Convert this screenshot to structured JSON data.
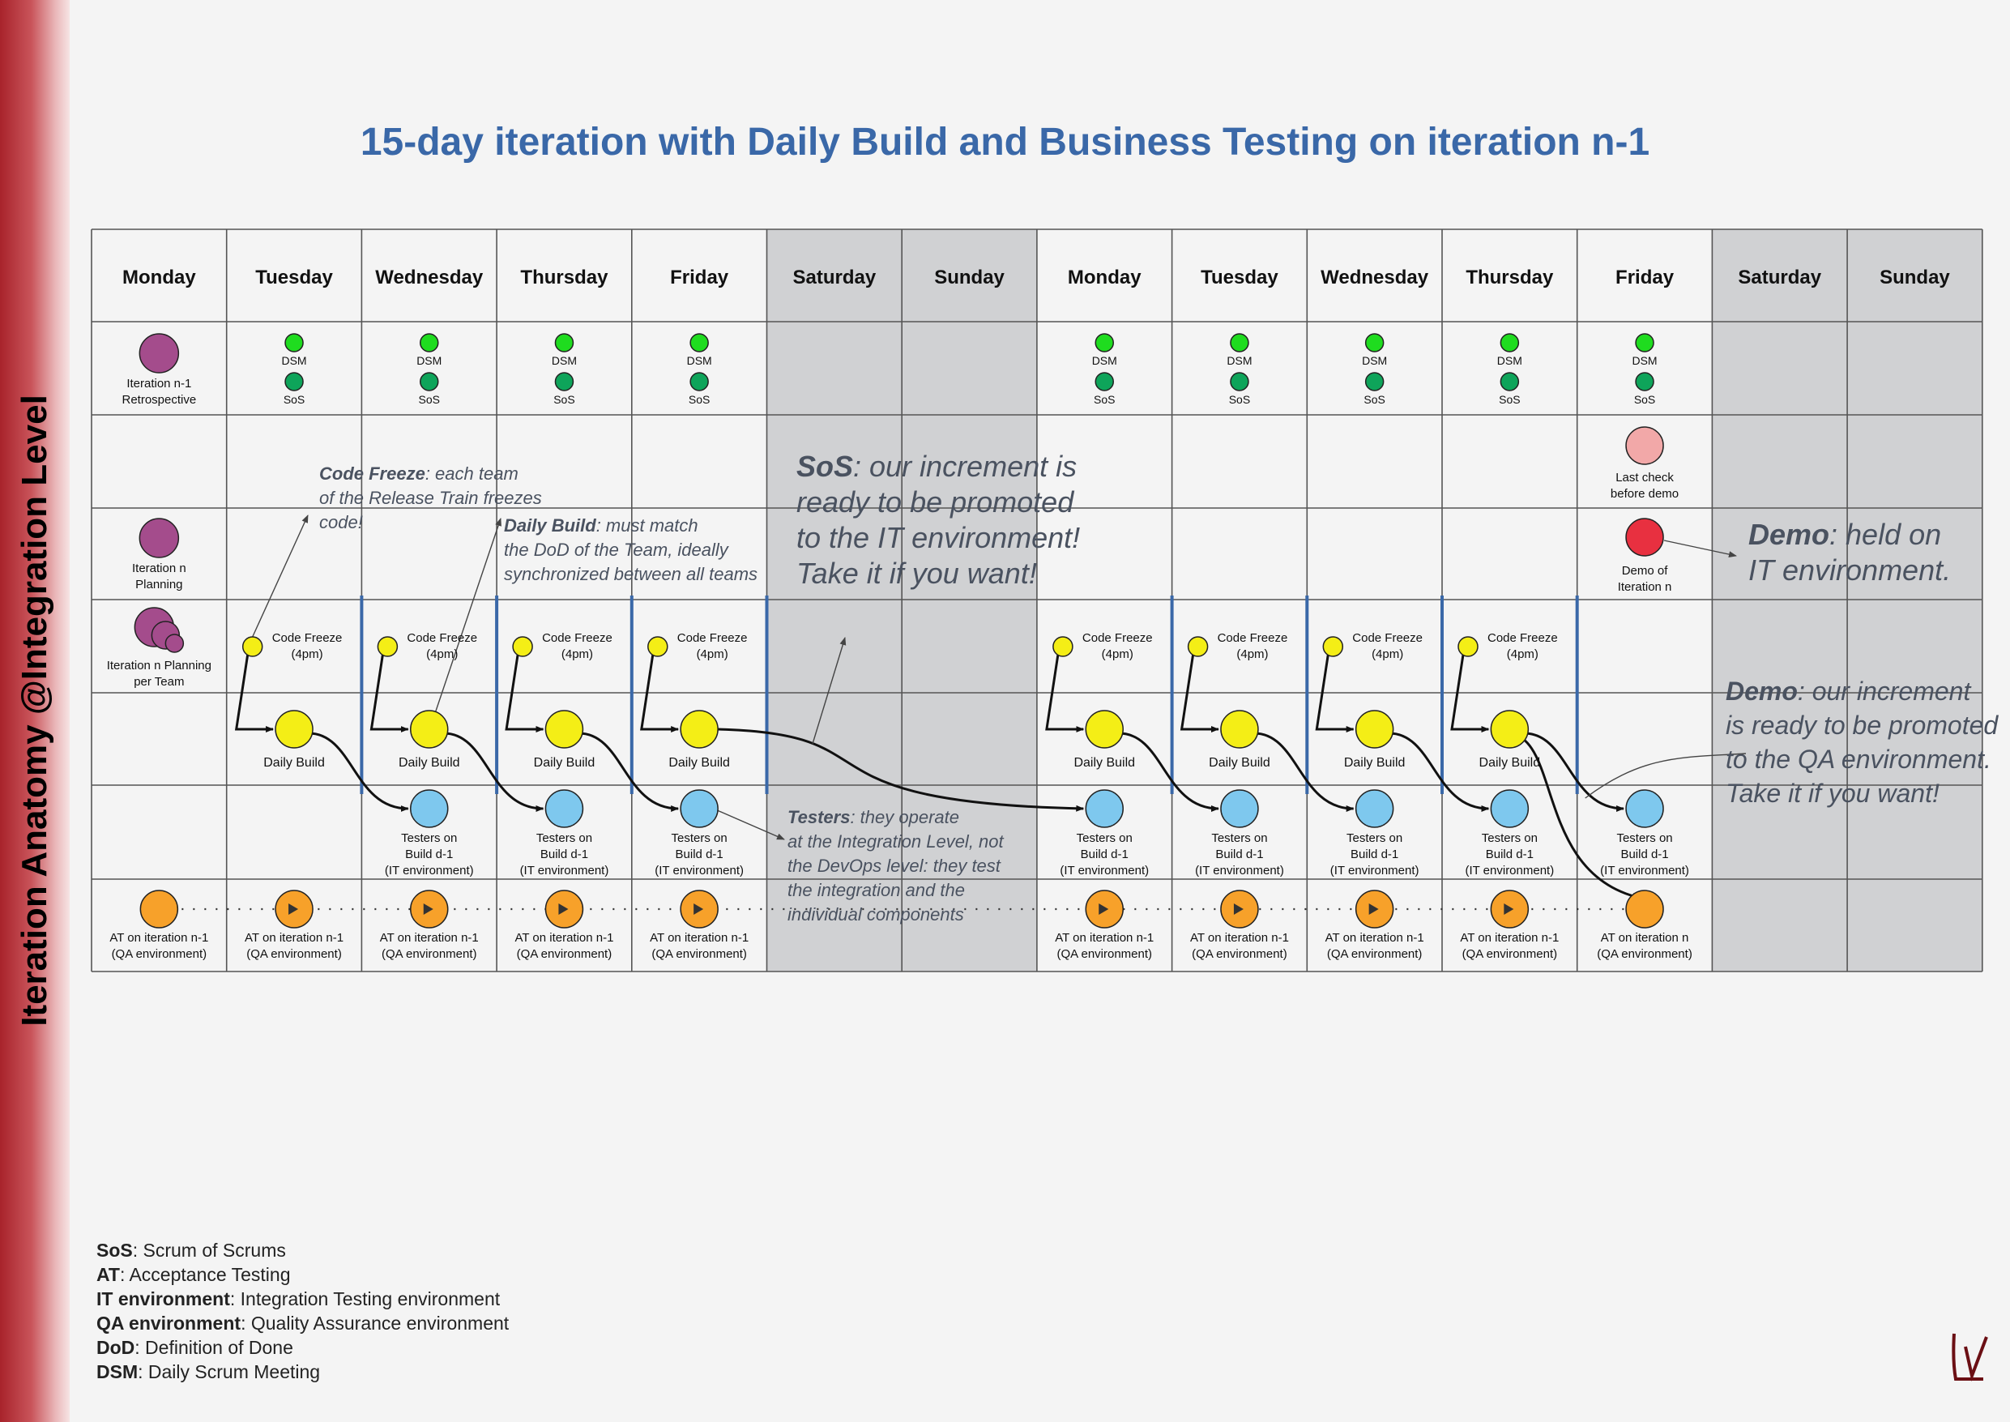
{
  "sidebar": {
    "label": "Iteration Anatomy @Integration Level"
  },
  "title": "15-day iteration with Daily Build and Business Testing on iteration n-1",
  "days": [
    "Monday",
    "Tuesday",
    "Wednesday",
    "Thursday",
    "Friday",
    "Saturday",
    "Sunday",
    "Monday",
    "Tuesday",
    "Wednesday",
    "Thursday",
    "Friday",
    "Saturday",
    "Sunday"
  ],
  "colors": {
    "purple": "#a44c8c",
    "green_light": "#1fdc1f",
    "green_dark": "#0ea45a",
    "yellow": "#f4ee16",
    "blue": "#7ec8ee",
    "orange": "#f7a12a",
    "pink": "#f2a8a8",
    "red": "#e83040",
    "weekend": "#d0d1d3",
    "build_line": "#3a68a8",
    "title": "#3a68a8"
  },
  "labels": {
    "dsm": "DSM",
    "sos": "SoS",
    "retro": [
      "Iteration n-1",
      "Retrospective"
    ],
    "planning": [
      "Iteration n",
      "Planning"
    ],
    "team_planning": [
      "Iteration n Planning",
      "per Team"
    ],
    "code_freeze": [
      "Code Freeze",
      "(4pm)"
    ],
    "daily_build": "Daily Build",
    "testers": [
      "Testers on",
      "Build d-1",
      "(IT environment)"
    ],
    "at_prev": [
      "AT on iteration n-1",
      "(QA environment)"
    ],
    "at_curr": [
      "AT on iteration n",
      "(QA environment)"
    ],
    "last_check": [
      "Last check",
      "before demo"
    ],
    "demo": [
      "Demo of",
      "Iteration n"
    ]
  },
  "annotations": {
    "code_freeze": {
      "bold": "Code Freeze",
      "rest": ": each team",
      "lines": [
        "of the Release Train freezes",
        "code!"
      ]
    },
    "daily_build": {
      "bold": "Daily Build",
      "rest": ": must match",
      "lines": [
        "the DoD of the Team, ideally",
        "synchronized between all teams"
      ]
    },
    "sos": {
      "bold": "SoS",
      "rest": ": our increment is",
      "lines": [
        "ready to be promoted",
        "to the IT environment!",
        "Take it if you want!"
      ]
    },
    "testers": {
      "bold": "Testers",
      "rest": ": they operate",
      "lines": [
        "at the Integration Level, not",
        "the DevOps level: they test",
        "the integration and the",
        "individual components"
      ]
    },
    "demo_it": {
      "bold": "Demo",
      "rest": ": held on",
      "lines": [
        "IT environment."
      ]
    },
    "demo_qa": {
      "bold": "Demo",
      "rest": ": our increment",
      "lines": [
        "is ready to be promoted",
        "to the QA environment.",
        "Take it if you want!"
      ]
    }
  },
  "legend": [
    {
      "term": "SoS",
      "definition": ": Scrum of Scrums"
    },
    {
      "term": "AT",
      "definition": ": Acceptance Testing"
    },
    {
      "term": "IT environment",
      "definition": ": Integration Testing environment"
    },
    {
      "term": "QA environment",
      "definition": ": Quality Assurance environment"
    },
    {
      "term": "DoD",
      "definition": ": Definition of Done"
    },
    {
      "term": "DSM",
      "definition": ": Daily Scrum Meeting"
    }
  ],
  "logo": {
    "icon": "lv-logo-icon",
    "color": "#6b0f14"
  }
}
